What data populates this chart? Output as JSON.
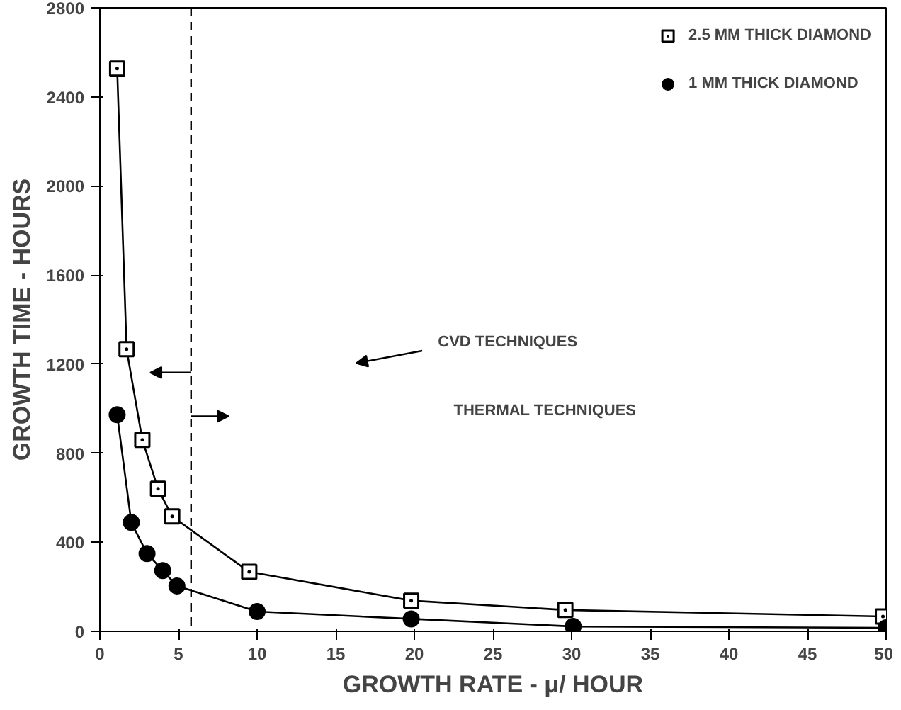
{
  "chart_data": {
    "type": "line",
    "xlabel": "GROWTH RATE - μ/ HOUR",
    "ylabel": "GROWTH TIME - HOURS",
    "xlim": [
      0,
      50
    ],
    "ylim": [
      0,
      2800
    ],
    "xticks": [
      0,
      5,
      10,
      15,
      20,
      25,
      30,
      35,
      40,
      45,
      50
    ],
    "yticks": [
      0,
      400,
      800,
      1200,
      1600,
      2000,
      2400,
      2800
    ],
    "grid": false,
    "legend": "top right",
    "series": [
      {
        "name": "2.5 MM THICK DIAMOND",
        "color": "#000000",
        "marker": "square",
        "x": [
          1.1,
          1.7,
          2.7,
          3.7,
          4.6,
          9.5,
          19.8,
          29.6,
          49.8
        ],
        "values": [
          2527,
          1267,
          860,
          640,
          516,
          267,
          138,
          96,
          67
        ]
      },
      {
        "name": "1 MM THICK DIAMOND",
        "color": "#000000",
        "marker": "circle",
        "x": [
          1.1,
          2.0,
          3.0,
          4.0,
          4.9,
          10,
          19.8,
          30.1,
          50
        ],
        "values": [
          973,
          489,
          349,
          273,
          204,
          89,
          56,
          22,
          16
        ]
      }
    ],
    "ref_lines": [
      {
        "axis": "x",
        "value": 5.8,
        "line_style": "dashed",
        "color": "#000000"
      }
    ],
    "annotations": [
      "CVD TECHNIQUES",
      "THERMAL TECHNIQUES"
    ]
  }
}
